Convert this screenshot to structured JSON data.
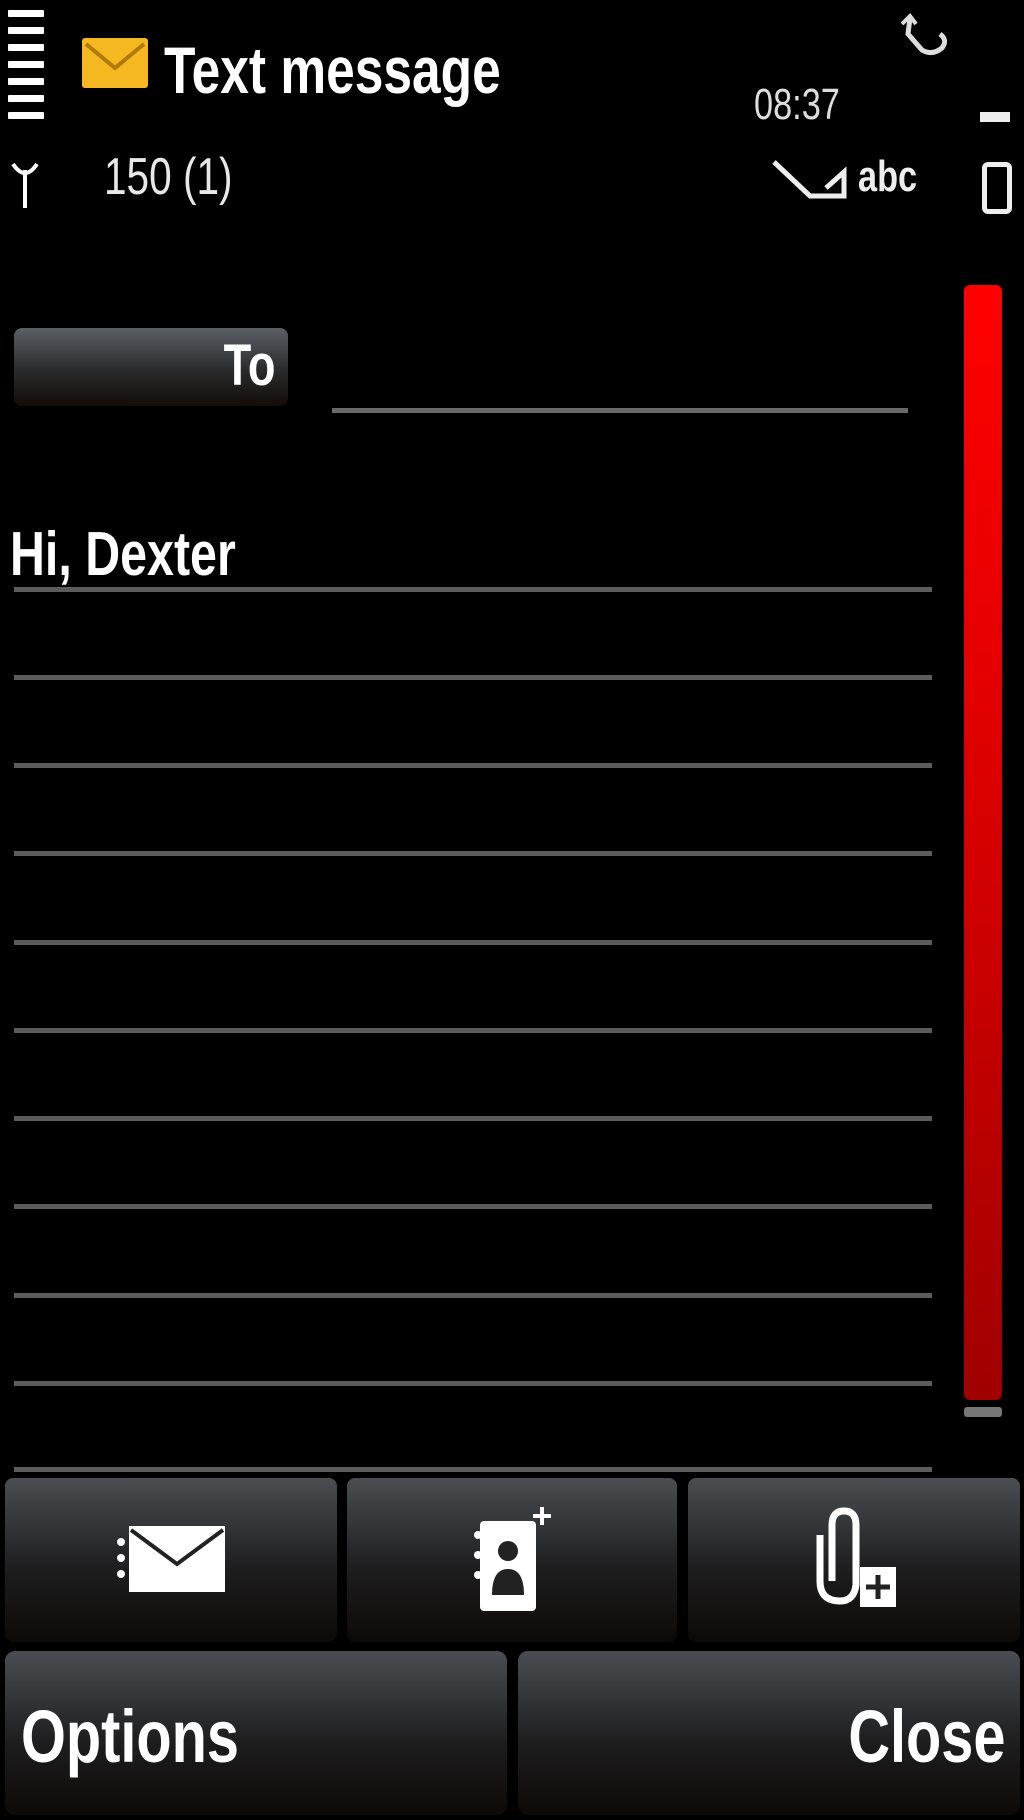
{
  "status_bar": {
    "signal_strength_bars": 7,
    "time": "08:37",
    "input_mode": "abc",
    "icons": [
      "signal-bars-icon",
      "antenna-icon",
      "envelope-icon",
      "rotate-icon",
      "message-type-icon",
      "battery-icon"
    ]
  },
  "header": {
    "title": "Text message",
    "char_counter": "150 (1)",
    "accent_color": "#f5b820"
  },
  "editor": {
    "to_button_label": "To",
    "to_value": "",
    "message_body": "Hi, Dexter",
    "scrollbar_color": "#ff0000"
  },
  "toolbar": {
    "buttons": [
      {
        "icon": "send-message-icon"
      },
      {
        "icon": "add-recipient-icon"
      },
      {
        "icon": "insert-attachment-icon"
      }
    ]
  },
  "softkeys": {
    "left_label": "Options",
    "right_label": "Close"
  }
}
